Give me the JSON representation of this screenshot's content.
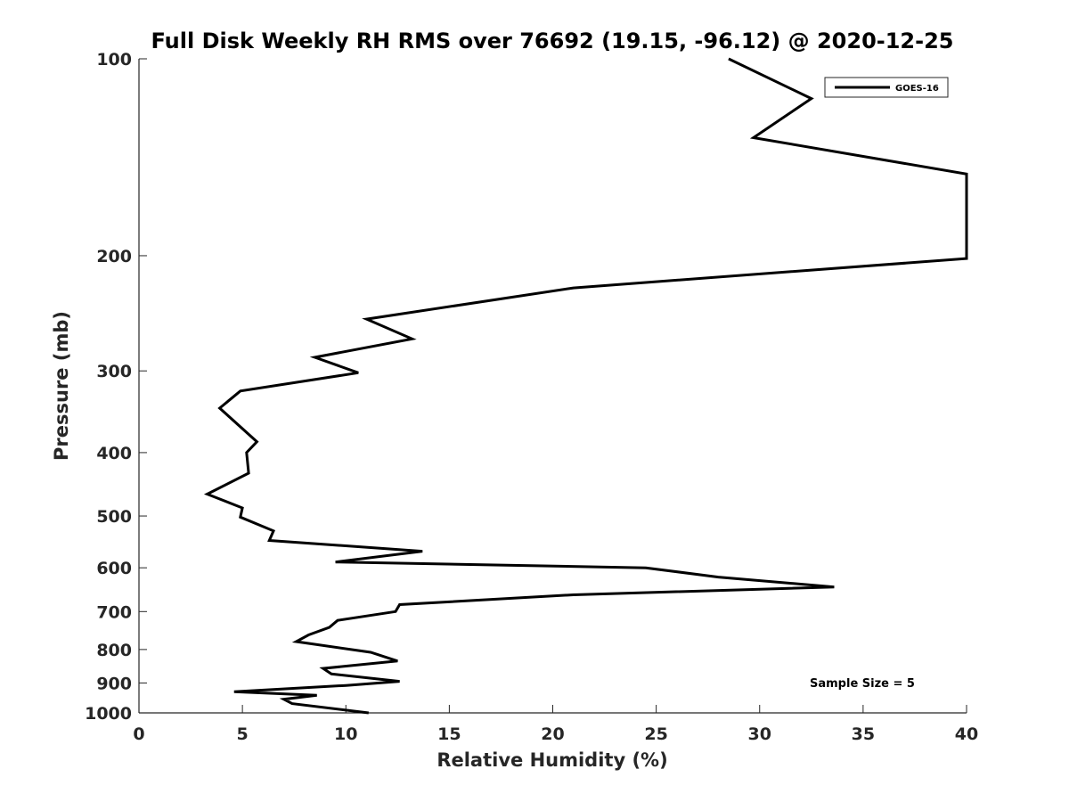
{
  "chart_data": {
    "type": "line",
    "title": "Full Disk Weekly RH RMS over 76692 (19.15, -96.12) @ 2020-12-25",
    "xlabel": "Relative Humidity (%)",
    "ylabel": "Pressure (mb)",
    "xlim": [
      0,
      40
    ],
    "ylim": [
      1000,
      100
    ],
    "y_scale": "log",
    "y_reversed": true,
    "grid": false,
    "legend_position": "top-right",
    "xticks": [
      0,
      5,
      10,
      15,
      20,
      25,
      30,
      35,
      40
    ],
    "yticks": [
      100,
      200,
      300,
      400,
      500,
      600,
      700,
      800,
      900,
      1000
    ],
    "annotation": "Sample Size = 5",
    "series": [
      {
        "name": "GOES-16",
        "color": "#000000",
        "points": [
          [
            28.5,
            100
          ],
          [
            32.5,
            115
          ],
          [
            29.7,
            132
          ],
          [
            40,
            150
          ],
          [
            40,
            202
          ],
          [
            21,
            224
          ],
          [
            11,
            250
          ],
          [
            13.2,
            268
          ],
          [
            8.5,
            286
          ],
          [
            10.6,
            302
          ],
          [
            4.9,
            322
          ],
          [
            3.9,
            342
          ],
          [
            5.7,
            385
          ],
          [
            5.2,
            400
          ],
          [
            5.3,
            430
          ],
          [
            3.3,
            463
          ],
          [
            5.0,
            486
          ],
          [
            4.9,
            502
          ],
          [
            6.5,
            527
          ],
          [
            6.3,
            545
          ],
          [
            13.7,
            566
          ],
          [
            9.5,
            588
          ],
          [
            24.5,
            600
          ],
          [
            28.0,
            620
          ],
          [
            33.6,
            642
          ],
          [
            21.0,
            660
          ],
          [
            12.6,
            683
          ],
          [
            12.4,
            700
          ],
          [
            9.6,
            722
          ],
          [
            9.2,
            740
          ],
          [
            8.2,
            760
          ],
          [
            7.6,
            778
          ],
          [
            11.2,
            808
          ],
          [
            12.5,
            833
          ],
          [
            8.9,
            855
          ],
          [
            9.3,
            872
          ],
          [
            12.6,
            895
          ],
          [
            10.0,
            908
          ],
          [
            4.6,
            928
          ],
          [
            8.6,
            940
          ],
          [
            7.0,
            953
          ],
          [
            7.4,
            968
          ],
          [
            11.1,
            1000
          ]
        ]
      }
    ]
  }
}
